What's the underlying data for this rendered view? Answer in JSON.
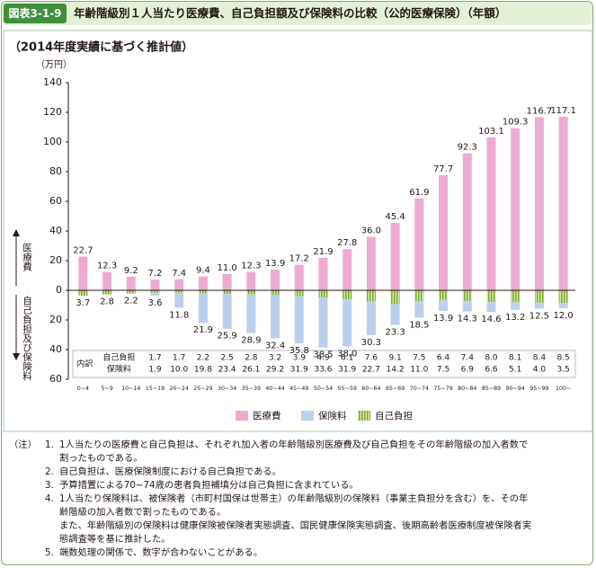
{
  "header": {
    "label": "図表3-1-9",
    "title": "年齢階級別１人当たり医療費、自己負担額及び保険料の比較（公的医療保険）（年額）"
  },
  "chart_data": {
    "type": "bar",
    "subtitle": "（2014年度実績に基づく推計値）",
    "y_unit": "（万円）",
    "y_label_up": "医療費",
    "y_label_down": "自己負担及び保険料",
    "breakdown_label": "内訳",
    "categories": [
      "0~4",
      "5~9",
      "10~14",
      "15~19",
      "20~24",
      "25~29",
      "30~34",
      "35~39",
      "40~44",
      "45~49",
      "50~54",
      "55~59",
      "60~64",
      "65~69",
      "70~74",
      "75~79",
      "80~84",
      "85~89",
      "90~94",
      "95~99",
      "100~"
    ],
    "series": [
      {
        "name": "医療費",
        "color": "#eeaad0",
        "downward": false,
        "values": [
          22.7,
          12.3,
          9.2,
          7.2,
          7.4,
          9.4,
          11.0,
          12.3,
          13.9,
          17.2,
          21.9,
          27.8,
          36.0,
          45.4,
          61.9,
          77.7,
          92.3,
          103.1,
          109.3,
          116.7,
          117.1
        ],
        "value_labels": [
          "22.7",
          "12.3",
          "9.2",
          "7.2",
          "7.4",
          "9.4",
          "11.0",
          "12.3",
          "13.9",
          "17.2",
          "21.9",
          "27.8",
          "36.0",
          "45.4",
          "61.9",
          "77.7",
          "92.3",
          "103.1",
          "109.3",
          "116.7",
          "117.1"
        ]
      },
      {
        "name": "保険料",
        "color": "#bccfee",
        "downward": true,
        "values": [
          null,
          null,
          null,
          1.9,
          10.0,
          19.8,
          23.4,
          26.1,
          29.2,
          31.9,
          33.6,
          31.9,
          22.7,
          14.2,
          11.0,
          7.5,
          6.9,
          6.6,
          5.1,
          4.0,
          3.5
        ],
        "value_labels": [
          null,
          null,
          null,
          "1.9",
          "10.0",
          "19.8",
          "23.4",
          "26.1",
          "29.2",
          "31.9",
          "33.6",
          "31.9",
          "22.7",
          "14.2",
          "11.0",
          "7.5",
          "6.9",
          "6.6",
          "5.1",
          "4.0",
          "3.5"
        ]
      },
      {
        "name": "自己負担",
        "color": "#9cc24a",
        "downward": true,
        "values": [
          null,
          null,
          null,
          1.7,
          1.7,
          2.2,
          2.5,
          2.8,
          3.2,
          3.9,
          4.9,
          6.1,
          7.6,
          9.1,
          7.5,
          6.4,
          7.4,
          8.0,
          8.1,
          8.4,
          8.5
        ],
        "value_labels": [
          null,
          null,
          null,
          "1.7",
          "1.7",
          "2.2",
          "2.5",
          "2.8",
          "3.2",
          "3.9",
          "4.9",
          "6.1",
          "7.6",
          "9.1",
          "7.5",
          "6.4",
          "7.4",
          "8.0",
          "8.1",
          "8.4",
          "8.5"
        ]
      }
    ],
    "burden_totals": [
      3.7,
      2.8,
      2.2,
      3.6,
      11.8,
      21.9,
      25.9,
      28.9,
      32.4,
      35.8,
      38.5,
      38.0,
      30.3,
      23.3,
      18.5,
      13.9,
      14.3,
      14.6,
      13.2,
      12.5,
      12.0
    ],
    "burden_total_labels": [
      "3.7",
      "2.8",
      "2.2",
      "3.6",
      "11.8",
      "21.9",
      "25.9",
      "28.9",
      "32.4",
      "35.8",
      "38.5",
      "38.0",
      "30.3",
      "23.3",
      "18.5",
      "13.9",
      "14.3",
      "14.6",
      "13.2",
      "12.5",
      "12.0"
    ],
    "ylim": [
      -60,
      140
    ],
    "yticks": [
      {
        "value": -60,
        "label": "60"
      },
      {
        "value": -40,
        "label": "40"
      },
      {
        "value": -20,
        "label": "20"
      },
      0,
      20,
      40,
      60,
      80,
      100,
      120,
      140
    ],
    "grid": false,
    "legend": "bottom"
  },
  "notes": {
    "label": "（注）",
    "items": [
      {
        "number": "1.",
        "lines": [
          "1人当たりの医療費と自己負担は、それぞれ加入者の年齢階級別医療費及び自己負担をその年齢階級の加入者数で",
          "割ったものである。"
        ]
      },
      {
        "number": "2.",
        "lines": [
          "自己負担は、医療保険制度における自己負担である。"
        ]
      },
      {
        "number": "3.",
        "lines": [
          "予算措置による70~74歳の患者負担補填分は自己負担に含まれている。"
        ]
      },
      {
        "number": "4.",
        "lines": [
          "1人当たり保険料は、被保険者（市町村国保は世帯主）の年齢階級別の保険料（事業主負担分を含む）を、その年",
          "齢階級の加入者数で割ったものである。",
          "また、年齢階級別の保険料は健康保険被保険者実態調査、国民健康保険実態調査、後期高齢者医療制度被保険者実",
          "態調査等を基に推計した。"
        ]
      },
      {
        "number": "5.",
        "lines": [
          "端数処理の関係で、数字が合わないことがある。"
        ]
      }
    ]
  }
}
